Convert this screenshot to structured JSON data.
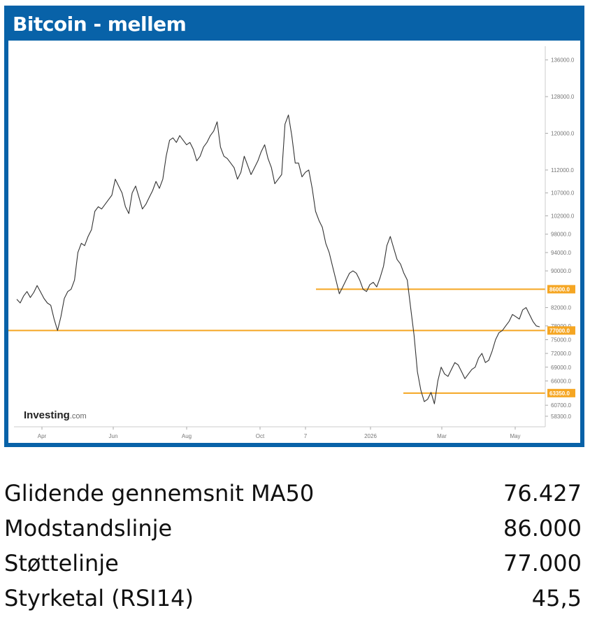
{
  "title": "Bitcoin - mellem",
  "brand": {
    "name": "Investing",
    "suffix": ".com"
  },
  "chart_data": {
    "type": "line",
    "y_ticks": [
      "136000.0",
      "128000.0",
      "120000.0",
      "112000.0",
      "107000.0",
      "102000.0",
      "98000.0",
      "94000.0",
      "90000.0",
      "82000.0",
      "78000.0",
      "75000.0",
      "72000.0",
      "69000.0",
      "66000.0",
      "60700.0",
      "58300.0"
    ],
    "x_ticks": [
      "Apr",
      "Jun",
      "Aug",
      "Oct",
      "7",
      "2026",
      "Mar",
      "May"
    ],
    "ylim": [
      56000,
      139000
    ],
    "series": [
      {
        "values": [
          83800,
          83000,
          84500,
          85500,
          84200,
          85300,
          86800,
          85400,
          84000,
          83000,
          82500,
          79500,
          77000,
          80000,
          84000,
          85500,
          86000,
          88000,
          94000,
          96000,
          95500,
          97500,
          99000,
          103000,
          104000,
          103500,
          104500,
          105500,
          106500,
          110000,
          108500,
          107000,
          104000,
          102500,
          107000,
          108500,
          106000,
          103500,
          104500,
          106000,
          107500,
          109500,
          108000,
          110000,
          115000,
          118500,
          119000,
          118000,
          119500,
          118500,
          117500,
          118000,
          116500,
          114000,
          115000,
          117000,
          118000,
          119500,
          120500,
          122500,
          117000,
          115000,
          114500,
          113500,
          112500,
          110000,
          111500,
          115000,
          113000,
          111000,
          112500,
          114000,
          116000,
          117500,
          114500,
          112500,
          109000,
          110000,
          111000,
          122000,
          124000,
          119500,
          113500,
          113500,
          110500,
          111500,
          112000,
          108000,
          103000,
          101000,
          99500,
          96000,
          94000,
          91000,
          88000,
          85000,
          86500,
          88000,
          89500,
          90000,
          89500,
          88000,
          86000,
          85500,
          87000,
          87500,
          86500,
          88500,
          91000,
          95500,
          97500,
          95000,
          92500,
          91500,
          89500,
          88000,
          82000,
          76000,
          68000,
          64000,
          61500,
          62000,
          63500,
          61000,
          66000,
          69000,
          67500,
          67000,
          68500,
          70000,
          69500,
          68000,
          66500,
          67500,
          68500,
          69000,
          71000,
          72000,
          70000,
          70500,
          72500,
          75000,
          76500,
          77000,
          78000,
          79000,
          80500,
          80000,
          79500,
          81500,
          82000,
          80500,
          79000,
          78000,
          77800
        ]
      }
    ],
    "h_lines": [
      {
        "value": 86000,
        "label": "86000.0"
      },
      {
        "value": 77000,
        "label": "77000.0"
      },
      {
        "value": 63350,
        "label": "63350.0"
      }
    ],
    "line_color": "#333333",
    "level_color": "#f5a623",
    "grid": false
  },
  "stats": [
    {
      "label": "Glidende gennemsnit MA50",
      "value": "76.427"
    },
    {
      "label": "Modstandslinje",
      "value": "86.000"
    },
    {
      "label": "Støttelinje",
      "value": "77.000"
    },
    {
      "label": "Styrketal (RSI14)",
      "value": "45,5"
    }
  ]
}
